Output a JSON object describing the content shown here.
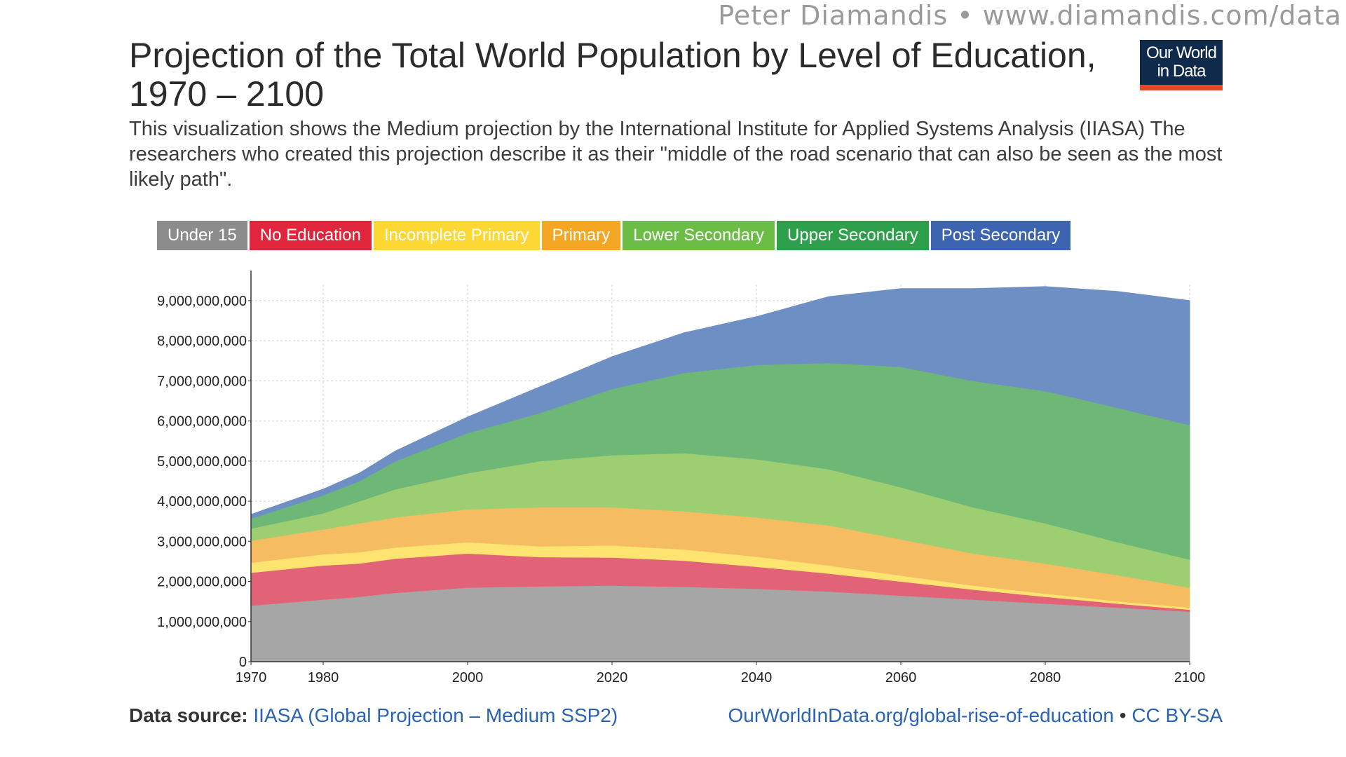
{
  "watermark": "Peter Diamandis  •  www.diamandis.com/data",
  "logo": {
    "line1": "Our World",
    "line2": "in Data"
  },
  "footer": {
    "source_label": "Data source:",
    "source_text": "IIASA (Global Projection – Medium SSP2)",
    "link_text": "OurWorldInData.org/global-rise-of-education",
    "separator": "•",
    "license": "CC BY-SA"
  },
  "chart_data": {
    "type": "area",
    "stacked": true,
    "title": "Projection of the Total World Population by Level of Education, 1970 – 2100",
    "subtitle": "This visualization shows the Medium projection by the International Institute for Applied Systems Analysis (IIASA) The researchers who created this projection describe it as their \"middle of the road scenario that can also be seen as the most likely path\".",
    "x": [
      1970,
      1980,
      1985,
      1990,
      2000,
      2010,
      2020,
      2030,
      2040,
      2050,
      2060,
      2070,
      2080,
      2090,
      2100
    ],
    "xticks": [
      1970,
      1980,
      2000,
      2020,
      2040,
      2060,
      2080,
      2100
    ],
    "xlim": [
      1970,
      2100
    ],
    "ylim": [
      0,
      9400000000
    ],
    "yticks": [
      0,
      1000000000,
      2000000000,
      3000000000,
      4000000000,
      5000000000,
      6000000000,
      7000000000,
      8000000000,
      9000000000
    ],
    "yticklabels": [
      "0",
      "1,000,000,000",
      "2,000,000,000",
      "3,000,000,000",
      "4,000,000,000",
      "5,000,000,000",
      "6,000,000,000",
      "7,000,000,000",
      "8,000,000,000",
      "9,000,000,000"
    ],
    "grid": true,
    "legend_position": "top",
    "series": [
      {
        "name": "Under 15",
        "color": "#a6a6a6",
        "fill": "#a6a6a6",
        "legend_color": "#8c8c8c",
        "values": [
          1400000000.0,
          1550000000.0,
          1620000000.0,
          1720000000.0,
          1850000000.0,
          1880000000.0,
          1900000000.0,
          1870000000.0,
          1820000000.0,
          1750000000.0,
          1650000000.0,
          1550000000.0,
          1450000000.0,
          1350000000.0,
          1250000000.0
        ]
      },
      {
        "name": "No Education",
        "color": "#e06070",
        "fill": "#e26277",
        "legend_color": "#e0263c",
        "values": [
          820000000.0,
          850000000.0,
          830000000.0,
          850000000.0,
          850000000.0,
          730000000.0,
          700000000.0,
          650000000.0,
          550000000.0,
          450000000.0,
          350000000.0,
          250000000.0,
          170000000.0,
          100000000.0,
          50000000.0
        ]
      },
      {
        "name": "Incomplete Primary",
        "color": "#fde36f",
        "fill": "#fde36f",
        "legend_color": "#fdd835",
        "values": [
          250000000.0,
          280000000.0,
          280000000.0,
          280000000.0,
          280000000.0,
          270000000.0,
          300000000.0,
          280000000.0,
          250000000.0,
          200000000.0,
          150000000.0,
          100000000.0,
          80000000.0,
          60000000.0,
          50000000.0
        ]
      },
      {
        "name": "Primary",
        "color": "#f6bc62",
        "fill": "#f6bc62",
        "legend_color": "#f5a623",
        "values": [
          550000000.0,
          620000000.0,
          720000000.0,
          750000000.0,
          820000000.0,
          970000000.0,
          950000000.0,
          950000000.0,
          980000000.0,
          1000000000.0,
          900000000.0,
          800000000.0,
          750000000.0,
          650000000.0,
          500000000.0
        ]
      },
      {
        "name": "Lower Secondary",
        "color": "#9dcf72",
        "fill": "#9dcf72",
        "legend_color": "#6cbd45",
        "values": [
          300000000.0,
          400000000.0,
          550000000.0,
          700000000.0,
          900000000.0,
          1150000000.0,
          1300000000.0,
          1450000000.0,
          1450000000.0,
          1400000000.0,
          1300000000.0,
          1150000000.0,
          1000000000.0,
          820000000.0,
          700000000.0
        ]
      },
      {
        "name": "Upper Secondary",
        "color": "#6db877",
        "fill": "#6db877",
        "legend_color": "#2ea04b",
        "values": [
          250000000.0,
          450000000.0,
          500000000.0,
          700000000.0,
          1000000000.0,
          1200000000.0,
          1650000000.0,
          2000000000.0,
          2350000000.0,
          2650000000.0,
          3000000000.0,
          3150000000.0,
          3300000000.0,
          3350000000.0,
          3350000000.0
        ]
      },
      {
        "name": "Post Secondary",
        "color": "#6e8fc4",
        "fill": "#6e8fc4",
        "legend_color": "#3c64b1",
        "values": [
          100000000.0,
          150000000.0,
          200000000.0,
          250000000.0,
          400000000.0,
          650000000.0,
          800000000.0,
          1000000000.0,
          1200000000.0,
          1650000000.0,
          1950000000.0,
          2300000000.0,
          2600000000.0,
          2900000000.0,
          3100000000.0
        ]
      }
    ]
  }
}
